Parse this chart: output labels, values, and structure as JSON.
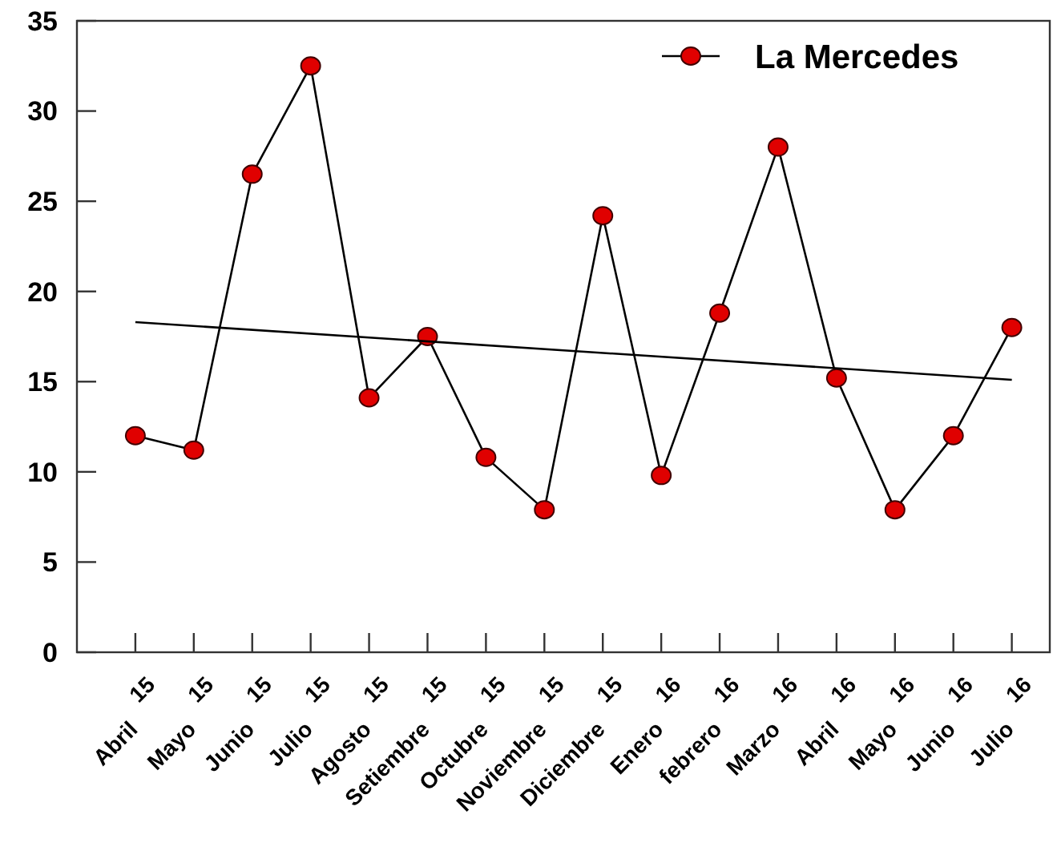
{
  "chart_data": {
    "type": "line",
    "categories": [
      "Abril 15",
      "Mayo 15",
      "Junio 15",
      "Julio 15",
      "Agosto 15",
      "Setiembre 15",
      "Octubre 15",
      "Noviembre 15",
      "Diciembre 15",
      "Enero 16",
      "febrero 16",
      "Marzo 16",
      "Abril 16",
      "Mayo 16",
      "Junio 16",
      "Julio 16"
    ],
    "series": [
      {
        "name": "La Mercedes",
        "color": "#e00000",
        "marker": "circle",
        "values": [
          12,
          11.2,
          26.5,
          32.5,
          14.1,
          17.5,
          10.8,
          7.9,
          24.2,
          9.8,
          18.8,
          28,
          15.2,
          7.9,
          12,
          18
        ]
      },
      {
        "type": "line",
        "color": "#000000",
        "marker": "none",
        "x": [
          "Abril 15",
          "Julio 16"
        ],
        "values": [
          18.3,
          15.1
        ]
      }
    ],
    "ylim": [
      0,
      35
    ],
    "yticks": [
      0,
      5,
      10,
      15,
      20,
      25,
      30,
      35
    ],
    "grid": false,
    "legend": "top right"
  }
}
